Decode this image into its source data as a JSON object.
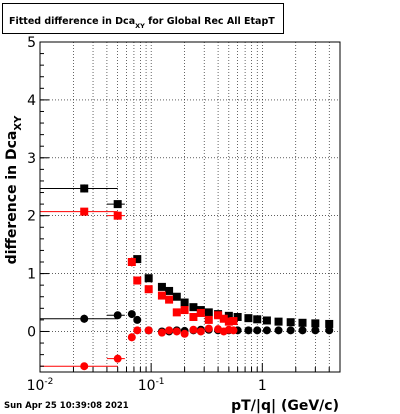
{
  "chart_data": {
    "type": "scatter",
    "title": "Fitted difference in Dca",
    "title_subscript": "XY",
    "title_suffix": " for Global Rec All EtapT",
    "xlabel": "pT/|q| (GeV/c)",
    "ylabel": "difference in Dca",
    "ylabel_subscript": "XY",
    "xscale": "log",
    "xlim": [
      0.01,
      5
    ],
    "ylim": [
      -0.7,
      5
    ],
    "grid": true,
    "x_ticks": [
      {
        "value": 0.01,
        "base": "10",
        "exp": "-2"
      },
      {
        "value": 0.1,
        "base": "10",
        "exp": "-1"
      },
      {
        "value": 1,
        "base": "1",
        "exp": ""
      }
    ],
    "y_ticks": [
      {
        "value": 0,
        "label": "0"
      },
      {
        "value": 1,
        "label": "1"
      },
      {
        "value": 2,
        "label": "2"
      },
      {
        "value": 3,
        "label": "3"
      },
      {
        "value": 4,
        "label": "4"
      },
      {
        "value": 5,
        "label": "5"
      }
    ],
    "series": [
      {
        "color": "#000000",
        "marker": "square",
        "points": [
          {
            "x": 0.025,
            "y": 2.47,
            "xlo": 0.01,
            "xhi": 0.05,
            "yerr": 0.07
          },
          {
            "x": 0.05,
            "y": 2.2,
            "xlo": 0.04,
            "xhi": 0.058,
            "yerr": 0.06
          },
          {
            "x": 0.075,
            "y": 1.25,
            "yerr": 0.05
          },
          {
            "x": 0.095,
            "y": 0.92,
            "yerr": 0.04
          },
          {
            "x": 0.125,
            "y": 0.77,
            "yerr": 0.03
          },
          {
            "x": 0.145,
            "y": 0.7,
            "yerr": 0.03
          },
          {
            "x": 0.17,
            "y": 0.6,
            "yerr": 0.03
          },
          {
            "x": 0.2,
            "y": 0.5,
            "yerr": 0.03
          },
          {
            "x": 0.24,
            "y": 0.42,
            "yerr": 0.02
          },
          {
            "x": 0.28,
            "y": 0.37,
            "yerr": 0.02
          },
          {
            "x": 0.33,
            "y": 0.33,
            "yerr": 0.02
          },
          {
            "x": 0.4,
            "y": 0.3,
            "yerr": 0.02
          },
          {
            "x": 0.5,
            "y": 0.27,
            "yerr": 0.02
          },
          {
            "x": 0.6,
            "y": 0.25,
            "yerr": 0.02
          },
          {
            "x": 0.75,
            "y": 0.23,
            "yerr": 0.02
          },
          {
            "x": 0.9,
            "y": 0.21,
            "yerr": 0.02
          },
          {
            "x": 1.1,
            "y": 0.19,
            "yerr": 0.02
          },
          {
            "x": 1.4,
            "y": 0.17,
            "yerr": 0.02
          },
          {
            "x": 1.8,
            "y": 0.16,
            "yerr": 0.02
          },
          {
            "x": 2.3,
            "y": 0.15,
            "yerr": 0.02
          },
          {
            "x": 3.0,
            "y": 0.14,
            "yerr": 0.02
          },
          {
            "x": 4.0,
            "y": 0.13,
            "yerr": 0.02
          }
        ]
      },
      {
        "color": "#ff0000",
        "marker": "square",
        "points": [
          {
            "x": 0.025,
            "y": 2.07,
            "xlo": 0.01,
            "xhi": 0.05,
            "yerr": 0.05
          },
          {
            "x": 0.05,
            "y": 2.0,
            "xlo": 0.04,
            "xhi": 0.058,
            "yerr": 0.06
          },
          {
            "x": 0.067,
            "y": 1.2,
            "yerr": 0.08
          },
          {
            "x": 0.075,
            "y": 0.88,
            "yerr": 0.05
          },
          {
            "x": 0.095,
            "y": 0.73,
            "yerr": 0.05
          },
          {
            "x": 0.125,
            "y": 0.62,
            "yerr": 0.05
          },
          {
            "x": 0.145,
            "y": 0.55,
            "yerr": 0.05
          },
          {
            "x": 0.17,
            "y": 0.33,
            "yerr": 0.05
          },
          {
            "x": 0.2,
            "y": 0.37,
            "yerr": 0.05
          },
          {
            "x": 0.24,
            "y": 0.25,
            "yerr": 0.04
          },
          {
            "x": 0.28,
            "y": 0.32,
            "yerr": 0.04
          },
          {
            "x": 0.33,
            "y": 0.2,
            "yerr": 0.04
          },
          {
            "x": 0.4,
            "y": 0.28,
            "yerr": 0.04
          },
          {
            "x": 0.45,
            "y": 0.22,
            "yerr": 0.04
          },
          {
            "x": 0.5,
            "y": 0.17,
            "yerr": 0.04
          },
          {
            "x": 0.55,
            "y": 0.18,
            "yerr": 0.04
          }
        ]
      },
      {
        "color": "#000000",
        "marker": "circle",
        "points": [
          {
            "x": 0.025,
            "y": 0.22,
            "xlo": 0.01,
            "xhi": 0.05,
            "yerr": 0.07
          },
          {
            "x": 0.05,
            "y": 0.28,
            "xlo": 0.04,
            "xhi": 0.058,
            "yerr": 0.05
          },
          {
            "x": 0.067,
            "y": 0.3,
            "yerr": 0.05
          },
          {
            "x": 0.075,
            "y": 0.2,
            "yerr": 0.04
          },
          {
            "x": 0.095,
            "y": 0.02,
            "yerr": 0.03
          },
          {
            "x": 0.125,
            "y": 0.0,
            "yerr": 0.02
          },
          {
            "x": 0.145,
            "y": 0.0,
            "yerr": 0.02
          },
          {
            "x": 0.17,
            "y": 0.02,
            "yerr": 0.02
          },
          {
            "x": 0.2,
            "y": 0.01,
            "yerr": 0.02
          },
          {
            "x": 0.24,
            "y": 0.02,
            "yerr": 0.02
          },
          {
            "x": 0.28,
            "y": 0.03,
            "yerr": 0.02
          },
          {
            "x": 0.33,
            "y": 0.03,
            "yerr": 0.02
          },
          {
            "x": 0.4,
            "y": 0.02,
            "yerr": 0.02
          },
          {
            "x": 0.5,
            "y": 0.02,
            "yerr": 0.02
          },
          {
            "x": 0.6,
            "y": 0.02,
            "yerr": 0.02
          },
          {
            "x": 0.75,
            "y": 0.02,
            "yerr": 0.02
          },
          {
            "x": 0.9,
            "y": 0.02,
            "yerr": 0.02
          },
          {
            "x": 1.1,
            "y": 0.02,
            "yerr": 0.02
          },
          {
            "x": 1.4,
            "y": 0.02,
            "yerr": 0.02
          },
          {
            "x": 1.8,
            "y": 0.02,
            "yerr": 0.02
          },
          {
            "x": 2.3,
            "y": 0.02,
            "yerr": 0.02
          },
          {
            "x": 3.0,
            "y": 0.02,
            "yerr": 0.02
          },
          {
            "x": 4.0,
            "y": 0.02,
            "yerr": 0.02
          }
        ]
      },
      {
        "color": "#ff0000",
        "marker": "circle",
        "points": [
          {
            "x": 0.025,
            "y": -0.6,
            "xlo": 0.01,
            "xhi": 0.05,
            "yerr": 0.04
          },
          {
            "x": 0.05,
            "y": -0.47,
            "xlo": 0.04,
            "xhi": 0.058,
            "yerr": 0.05
          },
          {
            "x": 0.067,
            "y": -0.1,
            "yerr": 0.07
          },
          {
            "x": 0.075,
            "y": 0.02,
            "yerr": 0.05
          },
          {
            "x": 0.095,
            "y": 0.02,
            "yerr": 0.05
          },
          {
            "x": 0.125,
            "y": -0.02,
            "yerr": 0.04
          },
          {
            "x": 0.145,
            "y": 0.02,
            "yerr": 0.04
          },
          {
            "x": 0.17,
            "y": 0.0,
            "yerr": 0.04
          },
          {
            "x": 0.2,
            "y": -0.04,
            "yerr": 0.04
          },
          {
            "x": 0.24,
            "y": 0.03,
            "yerr": 0.04
          },
          {
            "x": 0.28,
            "y": 0.0,
            "yerr": 0.04
          },
          {
            "x": 0.33,
            "y": 0.05,
            "yerr": 0.04
          },
          {
            "x": 0.4,
            "y": 0.04,
            "yerr": 0.04
          },
          {
            "x": 0.45,
            "y": 0.0,
            "yerr": 0.04
          },
          {
            "x": 0.5,
            "y": 0.03,
            "yerr": 0.04
          },
          {
            "x": 0.55,
            "y": 0.02,
            "yerr": 0.04
          }
        ]
      }
    ]
  },
  "footer": {
    "timestamp": "Sun Apr 25 10:39:08 2021"
  }
}
